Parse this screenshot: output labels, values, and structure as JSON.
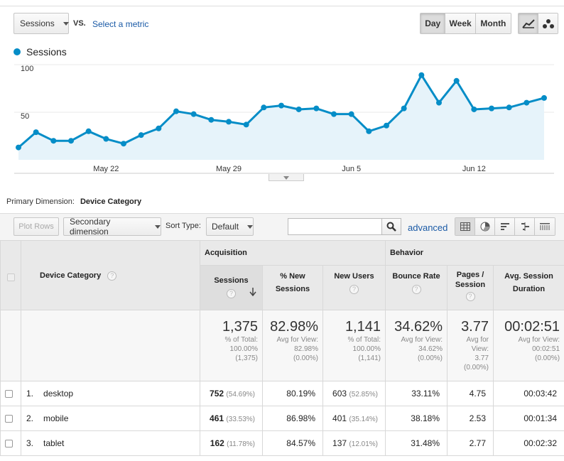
{
  "metric_select": "Sessions",
  "vs_label": "VS.",
  "select_metric_link": "Select a metric",
  "time_buttons": {
    "day": "Day",
    "week": "Week",
    "month": "Month"
  },
  "legend": "Sessions",
  "chart_data": {
    "type": "area",
    "series": [
      {
        "name": "Sessions",
        "values": [
          13,
          29,
          20,
          20,
          30,
          22,
          17,
          26,
          33,
          51,
          48,
          42,
          40,
          37,
          55,
          57,
          53,
          54,
          48,
          48,
          30,
          36,
          54,
          89,
          60,
          83,
          53,
          54,
          55,
          60,
          65
        ]
      }
    ],
    "x_tick_labels": [
      "May 22",
      "May 29",
      "Jun 5",
      "Jun 12"
    ],
    "y_tick_labels": [
      "100",
      "50"
    ],
    "ylim": [
      0,
      100
    ],
    "grid": true,
    "color": "#058dc7"
  },
  "primary_dimension": {
    "label": "Primary Dimension:",
    "value": "Device Category"
  },
  "toolbar": {
    "plot_rows": "Plot Rows",
    "secondary_dimension": "Secondary dimension",
    "sort_type_label": "Sort Type:",
    "sort_type_value": "Default",
    "search_value": "",
    "advanced": "advanced"
  },
  "table": {
    "dimension_header": "Device Category",
    "groups": {
      "acquisition": "Acquisition",
      "behavior": "Behavior"
    },
    "metric_headers": {
      "sessions": "Sessions",
      "pct_new": "% New Sessions",
      "new_users": "New Users",
      "bounce": "Bounce Rate",
      "pages": "Pages / Session",
      "duration": "Avg. Session Duration"
    },
    "totals": {
      "sessions": {
        "value": "1,375",
        "l1": "% of Total:",
        "l2": "100.00%",
        "l3": "(1,375)"
      },
      "pct_new": {
        "value": "82.98%",
        "l1": "Avg for View:",
        "l2": "82.98%",
        "l3": "(0.00%)"
      },
      "new_users": {
        "value": "1,141",
        "l1": "% of Total:",
        "l2": "100.00%",
        "l3": "(1,141)"
      },
      "bounce": {
        "value": "34.62%",
        "l1": "Avg for View:",
        "l2": "34.62%",
        "l3": "(0.00%)"
      },
      "pages": {
        "value": "3.77",
        "l1": "Avg for",
        "l2": "View:",
        "l3": "3.77",
        "l4": "(0.00%)"
      },
      "duration": {
        "value": "00:02:51",
        "l1": "Avg for View:",
        "l2": "00:02:51",
        "l3": "(0.00%)"
      }
    },
    "rows": [
      {
        "idx": "1.",
        "name": "desktop",
        "sessions": "752",
        "sessions_pct": "(54.69%)",
        "pct_new": "80.19%",
        "new_users": "603",
        "new_users_pct": "(52.85%)",
        "bounce": "33.11%",
        "pages": "4.75",
        "duration": "00:03:42"
      },
      {
        "idx": "2.",
        "name": "mobile",
        "sessions": "461",
        "sessions_pct": "(33.53%)",
        "pct_new": "86.98%",
        "new_users": "401",
        "new_users_pct": "(35.14%)",
        "bounce": "38.18%",
        "pages": "2.53",
        "duration": "00:01:34"
      },
      {
        "idx": "3.",
        "name": "tablet",
        "sessions": "162",
        "sessions_pct": "(11.78%)",
        "pct_new": "84.57%",
        "new_users": "137",
        "new_users_pct": "(12.01%)",
        "bounce": "31.48%",
        "pages": "2.77",
        "duration": "00:02:32"
      }
    ]
  },
  "help_glyph": "?"
}
